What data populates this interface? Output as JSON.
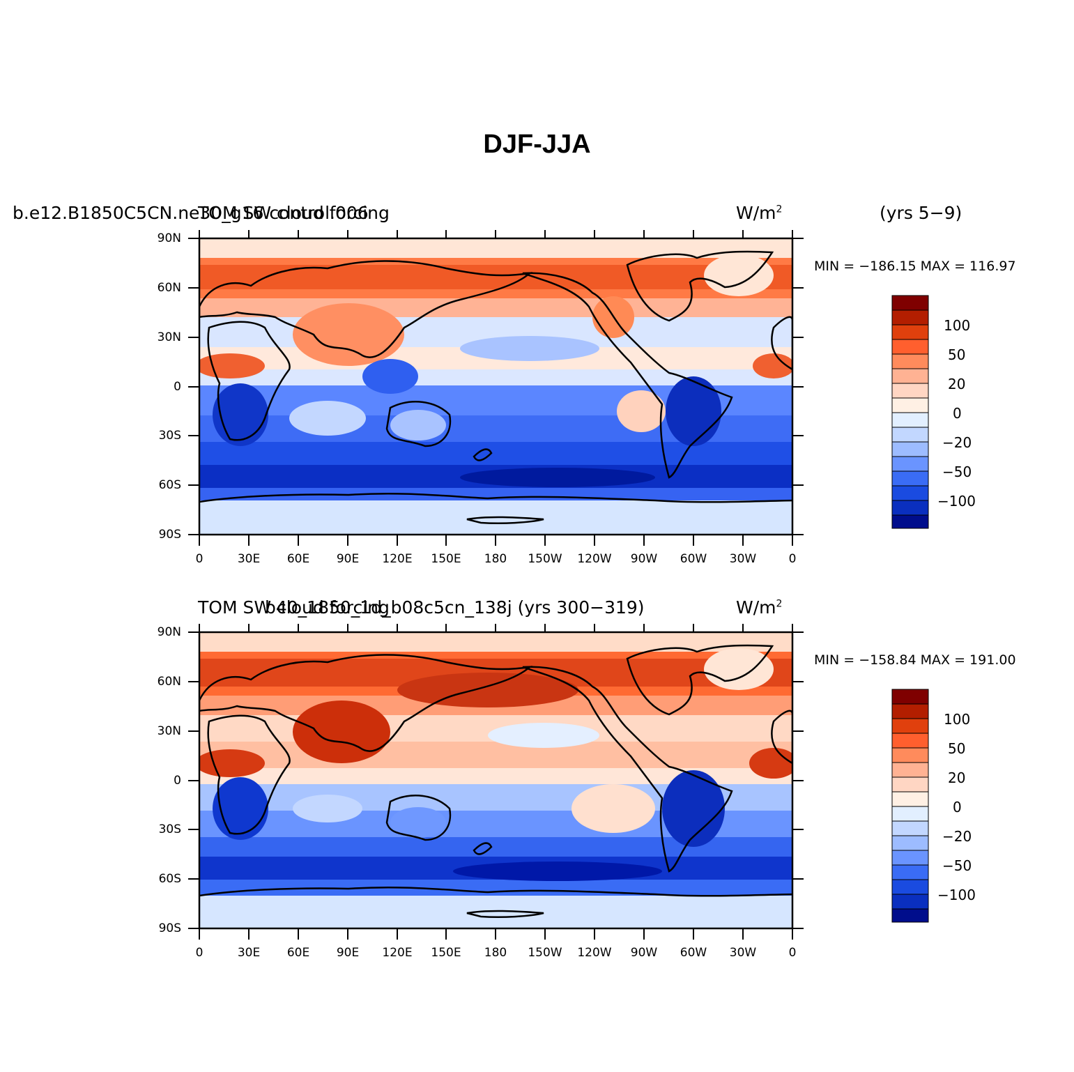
{
  "figure": {
    "title": "DJF-JJA"
  },
  "panels": [
    {
      "id": "top",
      "left_label": "b.e12.B1850C5CN.ne30_g16.control.006",
      "center_label": "TOM SW cloud forcing",
      "units": "W/m",
      "units_sup": "2",
      "right_label": "(yrs 5−9)",
      "min_max": "MIN = −186.15  MAX = 116.97",
      "colorbar_labels": [
        "100",
        "50",
        "20",
        "0",
        "−20",
        "−50",
        "−100"
      ]
    },
    {
      "id": "bottom",
      "left_label": "TOM SW cloud forcing",
      "center_label": "b40_1850_1d_b08c5cn_138j (yrs 300−319)",
      "units": "W/m",
      "units_sup": "2",
      "min_max": "MIN = −158.84  MAX = 191.00",
      "colorbar_labels": [
        "100",
        "50",
        "20",
        "0",
        "−20",
        "−50",
        "−100"
      ]
    }
  ],
  "axes": {
    "lat_labels": [
      "90N",
      "60N",
      "30N",
      "0",
      "30S",
      "60S",
      "90S"
    ],
    "lon_labels": [
      "0",
      "30E",
      "60E",
      "90E",
      "120E",
      "150E",
      "180",
      "150W",
      "120W",
      "90W",
      "60W",
      "30W",
      "0"
    ]
  },
  "colors": {
    "colorbar": [
      "#7f0000",
      "#b31e00",
      "#e0400d",
      "#ff5f2e",
      "#ff8b5c",
      "#ffb293",
      "#ffd6c3",
      "#fff0e4",
      "#e2efff",
      "#c2d7ff",
      "#9dbcff",
      "#6a94ff",
      "#3a6cf5",
      "#1a4be0",
      "#0a2fbf",
      "#000d8c"
    ],
    "land_outline": "#000000"
  }
}
